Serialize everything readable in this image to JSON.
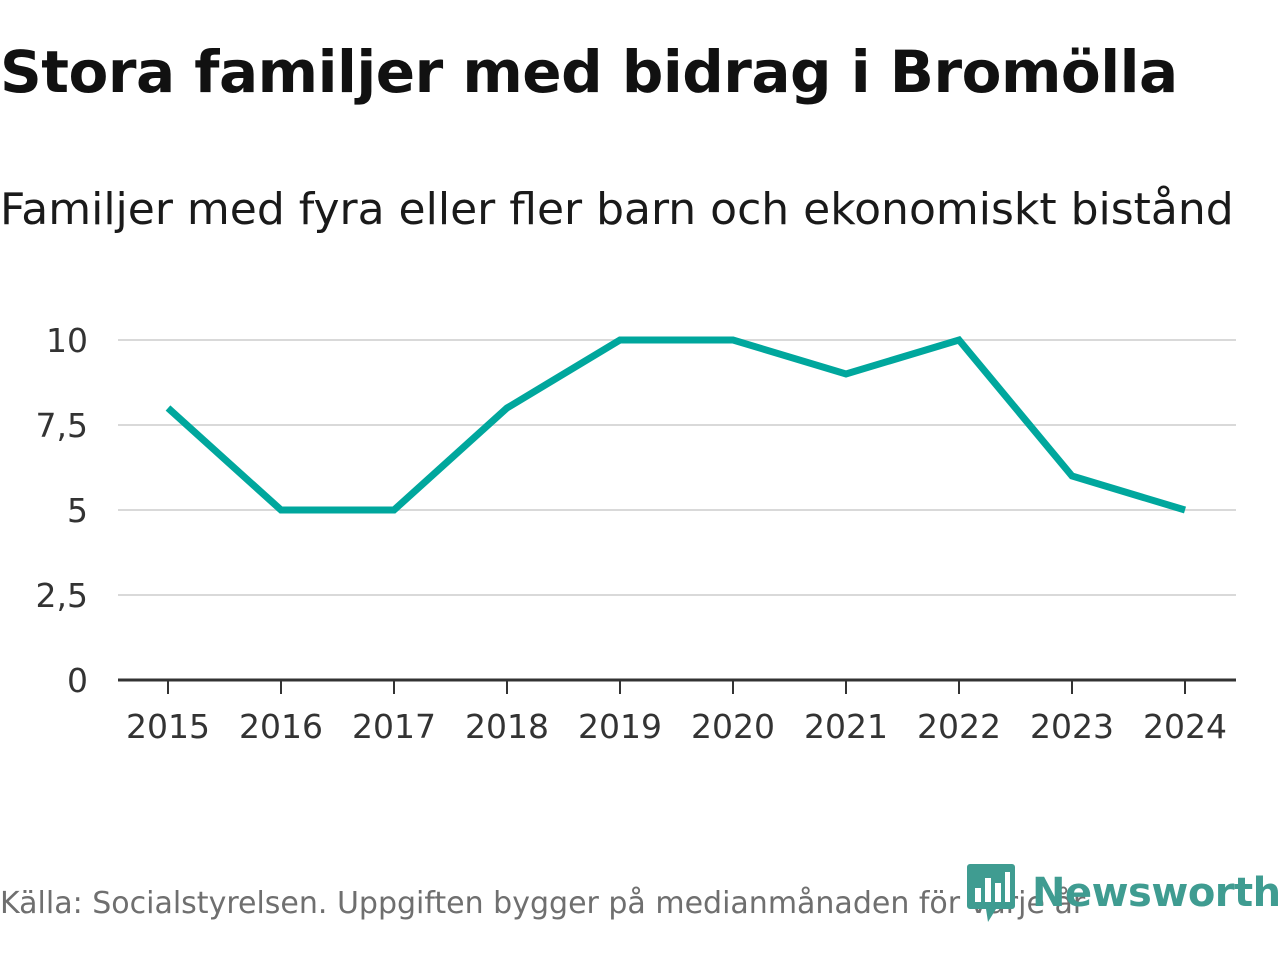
{
  "title": "Stora familjer med bidrag i Bromölla",
  "subtitle": "Familjer med fyra eller fler barn och ekonomiskt bistånd",
  "source": "Källa: Socialstyrelsen. Uppgiften bygger på medianmånaden för varje år",
  "brand": {
    "name": "Newsworthy",
    "color": "#3f9c91"
  },
  "colors": {
    "line": "#00a79d",
    "grid": "#d9d9d9",
    "axis": "#333333"
  },
  "chart_data": {
    "type": "line",
    "title": "Stora familjer med bidrag i Bromölla",
    "subtitle": "Familjer med fyra eller fler barn och ekonomiskt bistånd",
    "xlabel": "",
    "ylabel": "",
    "categories": [
      "2015",
      "2016",
      "2017",
      "2018",
      "2019",
      "2020",
      "2021",
      "2022",
      "2023",
      "2024"
    ],
    "series": [
      {
        "name": "Familjer med fyra eller fler barn och ekonomiskt bistånd",
        "values": [
          8,
          5,
          5,
          8,
          10,
          10,
          9,
          10,
          6,
          5
        ]
      }
    ],
    "ylim": [
      0,
      10
    ],
    "yticks": [
      0,
      2.5,
      5,
      7.5,
      10
    ],
    "ytick_labels": [
      "0",
      "2,5",
      "5",
      "7,5",
      "10"
    ],
    "grid": true
  }
}
